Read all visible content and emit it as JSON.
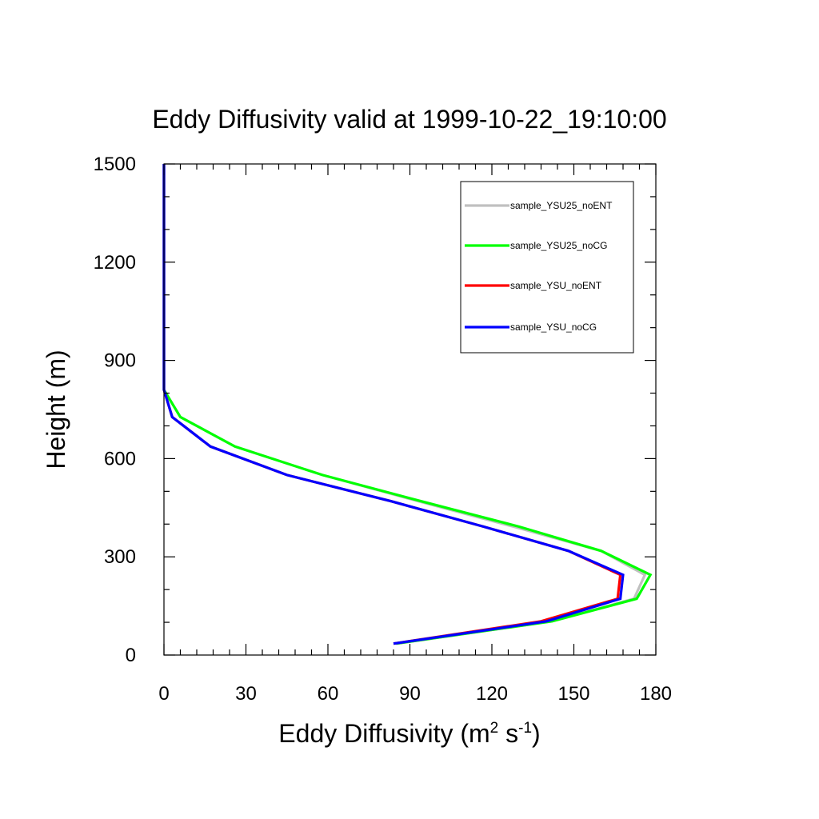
{
  "chart_data": {
    "type": "line",
    "title": "Eddy Diffusivity valid at 1999-10-22_19:10:00",
    "xlabel": {
      "main": "Eddy Diffusivity (m",
      "sup1": "2",
      "mid": " s",
      "sup2": "-1",
      "end": ")"
    },
    "ylabel": "Height (m)",
    "xlim": [
      0,
      180
    ],
    "ylim": [
      0,
      1500
    ],
    "xticks": [
      "0",
      "30",
      "60",
      "90",
      "120",
      "150",
      "180"
    ],
    "yticks": [
      "0",
      "300",
      "600",
      "900",
      "1200",
      "1500"
    ],
    "grid": false,
    "legend_position": "top-right",
    "series": [
      {
        "name": "sample_YSU25_noENT",
        "color": "#c0c0c0",
        "points": [
          [
            85,
            35
          ],
          [
            142,
            103
          ],
          [
            172,
            172
          ],
          [
            176,
            245
          ],
          [
            160,
            318
          ],
          [
            128,
            392
          ],
          [
            93,
            470
          ],
          [
            58,
            550
          ],
          [
            26,
            637
          ],
          [
            6,
            727
          ],
          [
            0,
            810
          ],
          [
            0,
            900
          ],
          [
            0,
            1000
          ],
          [
            0,
            1200
          ],
          [
            0,
            1500
          ]
        ]
      },
      {
        "name": "sample_YSU25_noCG",
        "color": "#00ff00",
        "points": [
          [
            85,
            35
          ],
          [
            142,
            103
          ],
          [
            173,
            172
          ],
          [
            178,
            245
          ],
          [
            160,
            318
          ],
          [
            130,
            392
          ],
          [
            94,
            470
          ],
          [
            58,
            550
          ],
          [
            26,
            637
          ],
          [
            6,
            727
          ],
          [
            0,
            810
          ],
          [
            0,
            900
          ],
          [
            0,
            1000
          ],
          [
            0,
            1200
          ],
          [
            0,
            1500
          ]
        ]
      },
      {
        "name": "sample_YSU_noENT",
        "color": "#ff0000",
        "points": [
          [
            84,
            35
          ],
          [
            138,
            103
          ],
          [
            166,
            172
          ],
          [
            167,
            245
          ],
          [
            148,
            318
          ],
          [
            117,
            392
          ],
          [
            83,
            470
          ],
          [
            45,
            550
          ],
          [
            17,
            637
          ],
          [
            3,
            727
          ],
          [
            0,
            810
          ],
          [
            0,
            900
          ],
          [
            0,
            1000
          ],
          [
            0,
            1200
          ],
          [
            0,
            1500
          ]
        ]
      },
      {
        "name": "sample_YSU_noCG",
        "color": "#0000ff",
        "points": [
          [
            84,
            35
          ],
          [
            140,
            103
          ],
          [
            167,
            172
          ],
          [
            168,
            245
          ],
          [
            148,
            318
          ],
          [
            117,
            392
          ],
          [
            83,
            470
          ],
          [
            45,
            550
          ],
          [
            17,
            637
          ],
          [
            3,
            727
          ],
          [
            0,
            810
          ],
          [
            0,
            900
          ],
          [
            0,
            1000
          ],
          [
            0,
            1200
          ],
          [
            0,
            1500
          ]
        ]
      }
    ]
  }
}
